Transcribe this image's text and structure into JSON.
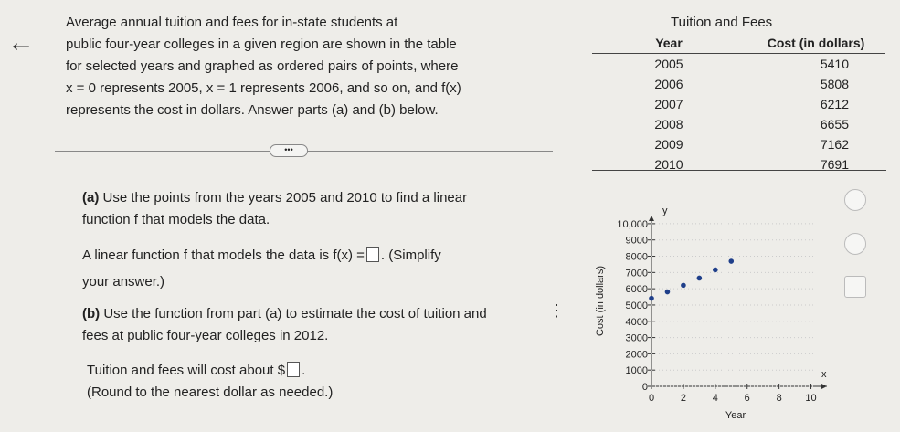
{
  "problem": {
    "intro_lines": [
      "Average annual tuition and fees for in-state students at",
      "public four-year colleges in a given region are shown in the table",
      "for selected years and graphed as ordered pairs of points, where",
      "x = 0 represents 2005, x = 1 represents 2006, and so on, and f(x)",
      "represents the cost in dollars. Answer parts (a) and (b) below."
    ],
    "part_a": {
      "label": "(a)",
      "lines": [
        "Use the points from the years 2005 and 2010 to find a linear",
        "function f that models the data."
      ],
      "answer_prefix": "A linear function f that models the data is f(x) =",
      "answer_suffix": ". (Simplify",
      "answer_suffix_2": "your answer.)"
    },
    "part_b": {
      "label": "(b)",
      "lines": [
        "Use the function from part (a) to estimate the cost of tuition and",
        "fees at public four-year colleges in 2012."
      ],
      "answer_prefix": "Tuition and fees will cost about $",
      "answer_suffix": ".",
      "note": "(Round to the nearest dollar as needed.)"
    }
  },
  "table": {
    "title": "Tuition and Fees",
    "headers": [
      "Year",
      "Cost (in dollars)"
    ],
    "rows": [
      [
        "2005",
        5410
      ],
      [
        "2006",
        5808
      ],
      [
        "2007",
        6212
      ],
      [
        "2008",
        6655
      ],
      [
        "2009",
        7162
      ],
      [
        "2010",
        7691
      ]
    ]
  },
  "chart_data": {
    "type": "scatter",
    "xlabel": "Year",
    "ylabel": "Cost (in dollars)",
    "x_axis_name": "x",
    "y_axis_name": "y",
    "x": [
      0,
      1,
      2,
      3,
      4,
      5
    ],
    "values": [
      5410,
      5808,
      6212,
      6655,
      7162,
      7691
    ],
    "color": "#1f3f8a",
    "xlim": [
      0,
      11
    ],
    "ylim": [
      0,
      10500
    ],
    "xticks": [
      0,
      2,
      4,
      6,
      8,
      10
    ],
    "yticks": [
      0,
      1000,
      2000,
      3000,
      4000,
      5000,
      6000,
      7000,
      8000,
      9000,
      {
        "value": 10000,
        "label": "10,000"
      }
    ]
  }
}
